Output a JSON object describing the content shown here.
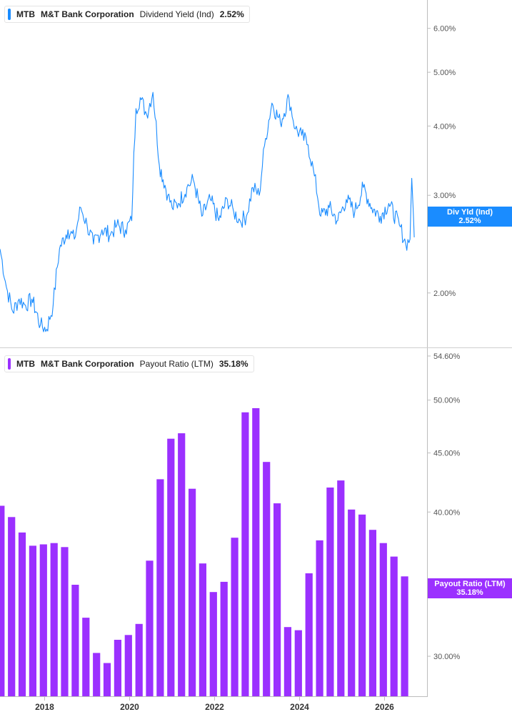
{
  "top_panel": {
    "legend": {
      "ticker": "MTB",
      "company": "M&T Bank Corporation",
      "metric": "Dividend Yield (Ind)",
      "value": "2.52%"
    },
    "tag": {
      "label": "Div Yld (Ind)",
      "value": "2.52%"
    },
    "color": "#1a8cff"
  },
  "bottom_panel": {
    "legend": {
      "ticker": "MTB",
      "company": "M&T Bank Corporation",
      "metric": "Payout Ratio (LTM)",
      "value": "35.18%"
    },
    "tag": {
      "label": "Payout Ratio (LTM)",
      "value": "35.18%"
    },
    "color": "#9b30ff"
  },
  "x_axis": {
    "range": [
      2016.95,
      2027.0
    ],
    "ticks": [
      {
        "value": 2018,
        "label": "2018"
      },
      {
        "value": 2020,
        "label": "2020"
      },
      {
        "value": 2022,
        "label": "2022"
      },
      {
        "value": 2024,
        "label": "2024"
      },
      {
        "value": 2026,
        "label": "2026"
      }
    ]
  },
  "chart_data": [
    {
      "type": "line",
      "title": "",
      "scale": "log",
      "ylim": [
        1.6,
        6.75
      ],
      "y_ticks": [
        {
          "value": 6.0,
          "label": "6.00%"
        },
        {
          "value": 5.0,
          "label": "5.00%"
        },
        {
          "value": 4.0,
          "label": "4.00%"
        },
        {
          "value": 3.0,
          "label": "3.00%"
        },
        {
          "value": 2.0,
          "label": "2.00%"
        }
      ],
      "series": [
        {
          "name": "Dividend Yield (Ind)",
          "x": [
            2016.95,
            2017.1,
            2017.25,
            2017.4,
            2017.55,
            2017.7,
            2017.9,
            2018.05,
            2018.2,
            2018.35,
            2018.55,
            2018.7,
            2018.85,
            2019.0,
            2019.15,
            2019.35,
            2019.55,
            2019.7,
            2019.9,
            2020.05,
            2020.15,
            2020.25,
            2020.4,
            2020.55,
            2020.7,
            2020.9,
            2021.0,
            2021.15,
            2021.35,
            2021.5,
            2021.7,
            2021.9,
            2022.1,
            2022.3,
            2022.45,
            2022.6,
            2022.75,
            2022.9,
            2023.05,
            2023.2,
            2023.35,
            2023.55,
            2023.75,
            2023.9,
            2024.05,
            2024.2,
            2024.35,
            2024.5,
            2024.7,
            2024.9,
            2025.1,
            2025.3,
            2025.5,
            2025.7,
            2025.9,
            2026.1,
            2026.35,
            2026.5,
            2026.6,
            2026.64,
            2026.7
          ],
          "values": [
            2.4,
            2.05,
            1.85,
            1.95,
            1.9,
            1.95,
            1.75,
            1.72,
            1.9,
            2.4,
            2.6,
            2.5,
            2.85,
            2.65,
            2.45,
            2.6,
            2.55,
            2.65,
            2.6,
            2.7,
            4.3,
            4.5,
            4.2,
            4.6,
            3.4,
            3.0,
            2.85,
            2.9,
            3.1,
            3.2,
            2.75,
            2.95,
            2.7,
            2.95,
            2.8,
            2.7,
            2.75,
            3.1,
            3.0,
            3.8,
            4.4,
            4.05,
            4.5,
            3.95,
            3.85,
            3.7,
            3.25,
            2.75,
            2.85,
            2.7,
            2.95,
            2.8,
            3.1,
            2.85,
            2.75,
            2.9,
            2.65,
            2.45,
            2.5,
            3.22,
            2.52
          ]
        }
      ]
    },
    {
      "type": "bar",
      "title": "",
      "scale": "log",
      "ylim": [
        27.7,
        54.6
      ],
      "y_ticks": [
        {
          "value": 54.6,
          "label": "54.60%"
        },
        {
          "value": 50.0,
          "label": "50.00%"
        },
        {
          "value": 45.0,
          "label": "45.00%"
        },
        {
          "value": 40.0,
          "label": "40.00%"
        },
        {
          "value": 30.0,
          "label": "30.00%"
        }
      ],
      "series": [
        {
          "name": "Payout Ratio (LTM)",
          "x": [
            2016.97,
            2017.22,
            2017.47,
            2017.72,
            2017.97,
            2018.22,
            2018.47,
            2018.72,
            2018.97,
            2019.22,
            2019.47,
            2019.72,
            2019.97,
            2020.22,
            2020.47,
            2020.72,
            2020.97,
            2021.22,
            2021.47,
            2021.72,
            2021.97,
            2022.22,
            2022.47,
            2022.72,
            2022.97,
            2023.22,
            2023.47,
            2023.72,
            2023.97,
            2024.22,
            2024.47,
            2024.72,
            2024.97,
            2025.22,
            2025.47,
            2025.72,
            2025.97,
            2026.22,
            2026.47
          ],
          "values": [
            40.5,
            39.6,
            38.4,
            37.4,
            37.5,
            37.6,
            37.3,
            34.6,
            32.4,
            30.2,
            29.6,
            31.0,
            31.3,
            32.0,
            36.3,
            42.7,
            46.3,
            46.8,
            41.9,
            36.1,
            34.1,
            34.8,
            38.0,
            48.8,
            49.2,
            44.2,
            40.7,
            31.8,
            31.6,
            35.4,
            37.8,
            42.0,
            42.6,
            40.2,
            39.8,
            38.6,
            37.6,
            36.6,
            35.18
          ]
        }
      ]
    }
  ]
}
